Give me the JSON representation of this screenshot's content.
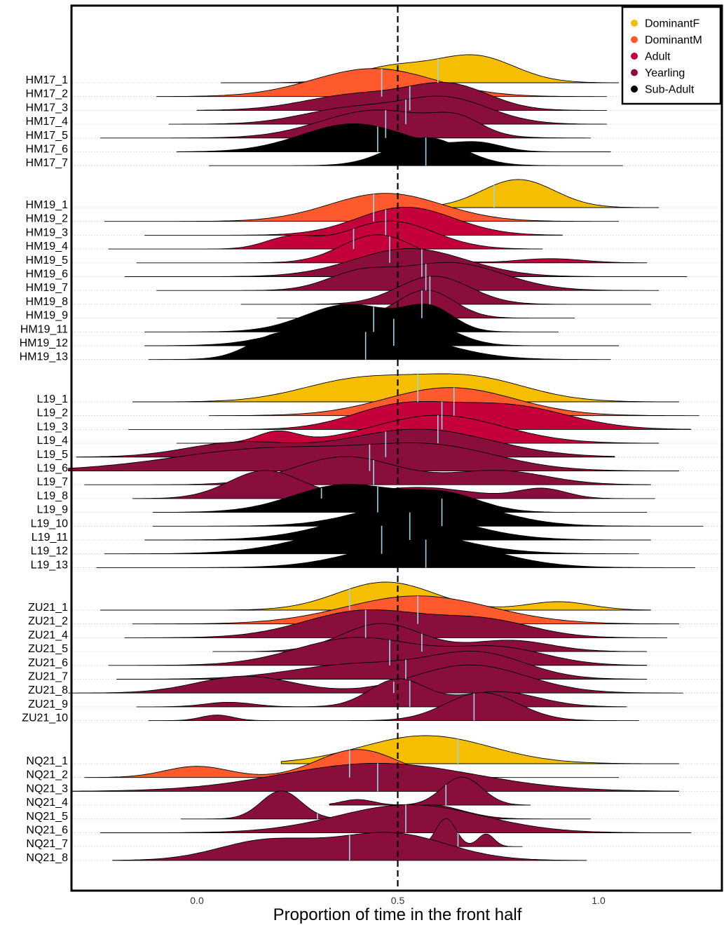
{
  "chart_data": {
    "type": "ridgeline",
    "title": "",
    "xlabel": "Proportion of time in the front half",
    "ylabel": "",
    "xlim": [
      -0.31,
      1.29
    ],
    "xticks": [
      "0.0",
      "0.5",
      "1.0"
    ],
    "xtick_values": [
      0.0,
      0.5,
      1.0
    ],
    "reference_line": 0.5,
    "legend_position": "top-right",
    "classes": [
      {
        "name": "DominantF",
        "color": "#F5BE00"
      },
      {
        "name": "DominantM",
        "color": "#FF5A2D"
      },
      {
        "name": "Adult",
        "color": "#C4003A"
      },
      {
        "name": "Yearling",
        "color": "#8A0E3C"
      },
      {
        "name": "Sub-Adult",
        "color": "#000000"
      }
    ],
    "rows": [
      {
        "label": "HM17_1",
        "class": "DominantF",
        "range": [
          0.06,
          1.05
        ],
        "median": 0.6,
        "peaks": [
          [
            0.48,
            0.09,
            0.55
          ],
          [
            0.69,
            0.1,
            1.0
          ]
        ]
      },
      {
        "label": "HM17_2",
        "class": "DominantM",
        "range": [
          -0.1,
          1.02
        ],
        "median": 0.46,
        "peaks": [
          [
            0.44,
            0.15,
            1.0
          ]
        ]
      },
      {
        "label": "HM17_3",
        "class": "Yearling",
        "range": [
          0.0,
          1.02
        ],
        "median": 0.53,
        "peaks": [
          [
            0.4,
            0.13,
            0.65
          ],
          [
            0.63,
            0.1,
            1.0
          ]
        ]
      },
      {
        "label": "HM17_4",
        "class": "Yearling",
        "range": [
          -0.07,
          1.02
        ],
        "median": 0.52,
        "peaks": [
          [
            0.38,
            0.12,
            0.6
          ],
          [
            0.62,
            0.11,
            1.0
          ]
        ]
      },
      {
        "label": "HM17_5",
        "class": "Yearling",
        "range": [
          -0.24,
          0.98
        ],
        "median": 0.47,
        "peaks": [
          [
            0.45,
            0.14,
            1.0
          ],
          [
            0.65,
            0.06,
            0.5
          ]
        ]
      },
      {
        "label": "HM17_6",
        "class": "Sub-Adult",
        "range": [
          -0.05,
          1.03
        ],
        "median": 0.45,
        "peaks": [
          [
            0.39,
            0.13,
            1.0
          ],
          [
            0.7,
            0.06,
            0.3
          ]
        ]
      },
      {
        "label": "HM17_7",
        "class": "Sub-Adult",
        "range": [
          0.03,
          1.06
        ],
        "median": 0.57,
        "peaks": [
          [
            0.57,
            0.09,
            1.0
          ]
        ]
      },
      {
        "label": "HM19_1",
        "class": "DominantF",
        "range": [
          0.55,
          1.15
        ],
        "median": 0.74,
        "peaks": [
          [
            0.8,
            0.09,
            1.0
          ]
        ]
      },
      {
        "label": "HM19_2",
        "class": "DominantM",
        "range": [
          -0.23,
          1.05
        ],
        "median": 0.44,
        "peaks": [
          [
            0.47,
            0.14,
            1.0
          ]
        ]
      },
      {
        "label": "HM19_3",
        "class": "Adult",
        "range": [
          -0.13,
          0.91
        ],
        "median": 0.47,
        "peaks": [
          [
            0.52,
            0.12,
            1.0
          ]
        ]
      },
      {
        "label": "HM19_4",
        "class": "Adult",
        "range": [
          -0.22,
          0.86
        ],
        "median": 0.39,
        "peaks": [
          [
            0.23,
            0.06,
            0.4
          ],
          [
            0.48,
            0.11,
            1.0
          ]
        ]
      },
      {
        "label": "HM19_5",
        "class": "Adult",
        "range": [
          -0.15,
          1.12
        ],
        "median": 0.48,
        "peaks": [
          [
            0.45,
            0.09,
            1.0
          ],
          [
            0.88,
            0.08,
            0.15
          ]
        ]
      },
      {
        "label": "HM19_6",
        "class": "Yearling",
        "range": [
          -0.18,
          1.22
        ],
        "median": 0.56,
        "peaks": [
          [
            0.53,
            0.14,
            1.0
          ]
        ]
      },
      {
        "label": "HM19_7",
        "class": "Yearling",
        "range": [
          -0.1,
          1.15
        ],
        "median": 0.57,
        "peaks": [
          [
            0.4,
            0.08,
            0.55
          ],
          [
            0.63,
            0.13,
            1.0
          ]
        ]
      },
      {
        "label": "HM19_8",
        "class": "Yearling",
        "range": [
          0.11,
          1.13
        ],
        "median": 0.58,
        "peaks": [
          [
            0.59,
            0.09,
            1.0
          ]
        ]
      },
      {
        "label": "HM19_9",
        "class": "Yearling",
        "range": [
          0.2,
          0.94
        ],
        "median": 0.56,
        "peaks": [
          [
            0.57,
            0.07,
            1.0
          ]
        ]
      },
      {
        "label": "HM19_11",
        "class": "Sub-Adult",
        "range": [
          -0.13,
          0.9
        ],
        "median": 0.44,
        "peaks": [
          [
            0.38,
            0.11,
            1.0
          ],
          [
            0.58,
            0.06,
            0.8
          ]
        ]
      },
      {
        "label": "HM19_12",
        "class": "Sub-Adult",
        "range": [
          -0.13,
          1.05
        ],
        "median": 0.49,
        "peaks": [
          [
            0.35,
            0.13,
            0.9
          ],
          [
            0.56,
            0.08,
            0.8
          ]
        ]
      },
      {
        "label": "HM19_13",
        "class": "Sub-Adult",
        "range": [
          -0.12,
          1.03
        ],
        "median": 0.42,
        "peaks": [
          [
            0.2,
            0.07,
            0.7
          ],
          [
            0.45,
            0.15,
            1.0
          ]
        ]
      },
      {
        "label": "L19_1",
        "class": "DominantF",
        "range": [
          -0.16,
          1.2
        ],
        "median": 0.55,
        "peaks": [
          [
            0.4,
            0.14,
            0.9
          ],
          [
            0.68,
            0.14,
            1.0
          ]
        ]
      },
      {
        "label": "L19_2",
        "class": "DominantM",
        "range": [
          0.03,
          1.25
        ],
        "median": 0.64,
        "peaks": [
          [
            0.63,
            0.16,
            1.0
          ]
        ]
      },
      {
        "label": "L19_3",
        "class": "Adult",
        "range": [
          -0.17,
          1.23
        ],
        "median": 0.61,
        "peaks": [
          [
            0.5,
            0.12,
            0.9
          ],
          [
            0.77,
            0.15,
            1.0
          ]
        ]
      },
      {
        "label": "L19_4",
        "class": "Adult",
        "range": [
          -0.05,
          1.15
        ],
        "median": 0.6,
        "peaks": [
          [
            0.2,
            0.05,
            0.4
          ],
          [
            0.6,
            0.16,
            1.0
          ]
        ]
      },
      {
        "label": "L19_5",
        "class": "Yearling",
        "range": [
          -0.3,
          1.04
        ],
        "median": 0.47,
        "peaks": [
          [
            0.1,
            0.13,
            0.5
          ],
          [
            0.55,
            0.18,
            1.0
          ]
        ]
      },
      {
        "label": "L19_6",
        "class": "Yearling",
        "range": [
          -0.32,
          1.2
        ],
        "median": 0.43,
        "peaks": [
          [
            0.2,
            0.25,
            0.9
          ],
          [
            0.6,
            0.16,
            0.8
          ]
        ]
      },
      {
        "label": "L19_7",
        "class": "Yearling",
        "range": [
          -0.28,
          1.13
        ],
        "median": 0.44,
        "peaks": [
          [
            0.37,
            0.13,
            1.0
          ],
          [
            0.75,
            0.12,
            0.5
          ]
        ]
      },
      {
        "label": "L19_8",
        "class": "Yearling",
        "range": [
          -0.16,
          1.14
        ],
        "median": 0.31,
        "peaks": [
          [
            0.17,
            0.09,
            1.0
          ],
          [
            0.55,
            0.13,
            0.4
          ],
          [
            0.86,
            0.06,
            0.35
          ]
        ]
      },
      {
        "label": "L19_9",
        "class": "Sub-Adult",
        "range": [
          -0.11,
          1.12
        ],
        "median": 0.45,
        "peaks": [
          [
            0.37,
            0.13,
            1.0
          ],
          [
            0.62,
            0.09,
            0.6
          ]
        ]
      },
      {
        "label": "L19_10",
        "class": "Sub-Adult",
        "range": [
          -0.11,
          1.26
        ],
        "median": 0.61,
        "peaks": [
          [
            0.58,
            0.15,
            1.0
          ]
        ]
      },
      {
        "label": "L19_11",
        "class": "Sub-Adult",
        "range": [
          -0.13,
          1.13
        ],
        "median": 0.53,
        "peaks": [
          [
            0.5,
            0.16,
            1.0
          ]
        ]
      },
      {
        "label": "L19_12",
        "class": "Sub-Adult",
        "range": [
          -0.23,
          1.1
        ],
        "median": 0.46,
        "peaks": [
          [
            0.45,
            0.17,
            1.0
          ]
        ]
      },
      {
        "label": "L19_13",
        "class": "Sub-Adult",
        "range": [
          -0.25,
          1.24
        ],
        "median": 0.57,
        "peaks": [
          [
            0.57,
            0.16,
            1.0
          ]
        ]
      },
      {
        "label": "ZU21_1",
        "class": "DominantF",
        "range": [
          -0.24,
          1.13
        ],
        "median": 0.38,
        "peaks": [
          [
            0.47,
            0.12,
            1.0
          ],
          [
            0.9,
            0.08,
            0.3
          ]
        ]
      },
      {
        "label": "ZU21_2",
        "class": "DominantM",
        "range": [
          -0.16,
          1.2
        ],
        "median": 0.55,
        "peaks": [
          [
            0.55,
            0.18,
            1.0
          ]
        ]
      },
      {
        "label": "ZU21_4",
        "class": "Yearling",
        "range": [
          -0.18,
          1.17
        ],
        "median": 0.42,
        "peaks": [
          [
            0.42,
            0.15,
            1.0
          ],
          [
            0.72,
            0.12,
            0.6
          ]
        ]
      },
      {
        "label": "ZU21_5",
        "class": "Yearling",
        "range": [
          0.04,
          1.12
        ],
        "median": 0.56,
        "peaks": [
          [
            0.46,
            0.1,
            1.0
          ],
          [
            0.78,
            0.1,
            0.4
          ]
        ]
      },
      {
        "label": "ZU21_6",
        "class": "Yearling",
        "range": [
          -0.22,
          1.12
        ],
        "median": 0.48,
        "peaks": [
          [
            0.4,
            0.15,
            0.8
          ],
          [
            0.75,
            0.12,
            0.5
          ]
        ]
      },
      {
        "label": "ZU21_7",
        "class": "Yearling",
        "range": [
          -0.2,
          1.12
        ],
        "median": 0.52,
        "peaks": [
          [
            0.4,
            0.16,
            0.6
          ],
          [
            0.7,
            0.12,
            1.0
          ]
        ]
      },
      {
        "label": "ZU21_8",
        "class": "Yearling",
        "range": [
          -0.32,
          1.21
        ],
        "median": 0.49,
        "peaks": [
          [
            0.12,
            0.12,
            0.6
          ],
          [
            0.68,
            0.14,
            1.0
          ]
        ]
      },
      {
        "label": "ZU21_9",
        "class": "Yearling",
        "range": [
          -0.15,
          1.07
        ],
        "median": 0.53,
        "peaks": [
          [
            0.08,
            0.06,
            0.15
          ],
          [
            0.5,
            0.07,
            0.9
          ],
          [
            0.75,
            0.1,
            0.5
          ]
        ]
      },
      {
        "label": "ZU21_10",
        "class": "Yearling",
        "range": [
          -0.12,
          1.1
        ],
        "median": 0.69,
        "peaks": [
          [
            0.05,
            0.04,
            0.2
          ],
          [
            0.71,
            0.09,
            1.0
          ]
        ]
      },
      {
        "label": "NQ21_1",
        "class": "DominantF",
        "range": [
          0.21,
          1.2
        ],
        "median": 0.65,
        "peaks": [
          [
            0.57,
            0.16,
            1.0
          ]
        ]
      },
      {
        "label": "NQ21_2",
        "class": "DominantM",
        "range": [
          -0.28,
          1.05
        ],
        "median": 0.38,
        "peaks": [
          [
            0.0,
            0.08,
            0.4
          ],
          [
            0.4,
            0.1,
            1.0
          ]
        ]
      },
      {
        "label": "NQ21_3",
        "class": "Yearling",
        "range": [
          -0.31,
          1.2
        ],
        "median": 0.45,
        "peaks": [
          [
            0.45,
            0.24,
            1.0
          ]
        ]
      },
      {
        "label": "NQ21_4",
        "class": "Yearling",
        "range": [
          0.33,
          0.83
        ],
        "median": 0.62,
        "peaks": [
          [
            0.4,
            0.04,
            0.2
          ],
          [
            0.66,
            0.05,
            1.0
          ]
        ]
      },
      {
        "label": "NQ21_5",
        "class": "Yearling",
        "range": [
          -0.04,
          0.98
        ],
        "median": 0.3,
        "peaks": [
          [
            0.21,
            0.05,
            1.0
          ],
          [
            0.58,
            0.08,
            0.5
          ]
        ]
      },
      {
        "label": "NQ21_6",
        "class": "Yearling",
        "range": [
          -0.24,
          1.23
        ],
        "median": 0.52,
        "peaks": [
          [
            0.53,
            0.18,
            1.0
          ]
        ]
      },
      {
        "label": "NQ21_7",
        "class": "Yearling",
        "range": [
          0.56,
          0.81
        ],
        "median": 0.65,
        "peaks": [
          [
            0.62,
            0.025,
            1.0
          ],
          [
            0.72,
            0.02,
            0.45
          ]
        ]
      },
      {
        "label": "NQ21_8",
        "class": "Yearling",
        "range": [
          -0.21,
          0.97
        ],
        "median": 0.38,
        "peaks": [
          [
            0.17,
            0.12,
            0.7
          ],
          [
            0.48,
            0.14,
            1.0
          ]
        ]
      }
    ]
  }
}
